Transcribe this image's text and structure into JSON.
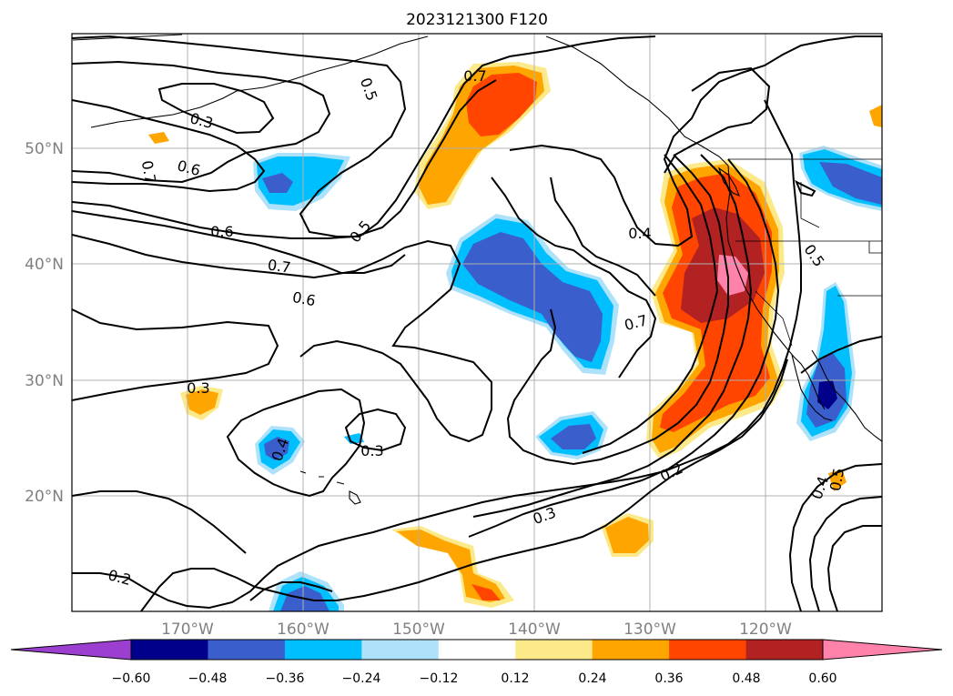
{
  "map": {
    "title": "2023121300 F120",
    "lat_labels": [
      "50°N",
      "40°N",
      "30°N",
      "20°N"
    ],
    "lon_labels": [
      "170°W",
      "160°W",
      "150°W",
      "140°W",
      "130°W",
      "120°W"
    ],
    "colorbar": {
      "ticks": [
        "−0.60",
        "−0.48",
        "−0.36",
        "−0.24",
        "−0.12",
        "0.12",
        "0.24",
        "0.36",
        "0.48",
        "0.60"
      ],
      "colors": [
        "#9c3fd1",
        "#00008b",
        "#3a5fcd",
        "#00bfff",
        "#aee2fa",
        "#ffffff",
        "#fce98a",
        "#ffa500",
        "#ff4500",
        "#b22222",
        "#ff82ab"
      ]
    },
    "contour_labels": [
      "0.7",
      "0.5",
      "0.3",
      "0.6",
      "0.7",
      "0.6",
      "0.5",
      "0.4",
      "0.7",
      "0.6",
      "0.7",
      "0.5",
      "0.3",
      "0.4",
      "0.3",
      "0.3",
      "0.2",
      "0.2",
      "0.4",
      "0.5"
    ]
  }
}
